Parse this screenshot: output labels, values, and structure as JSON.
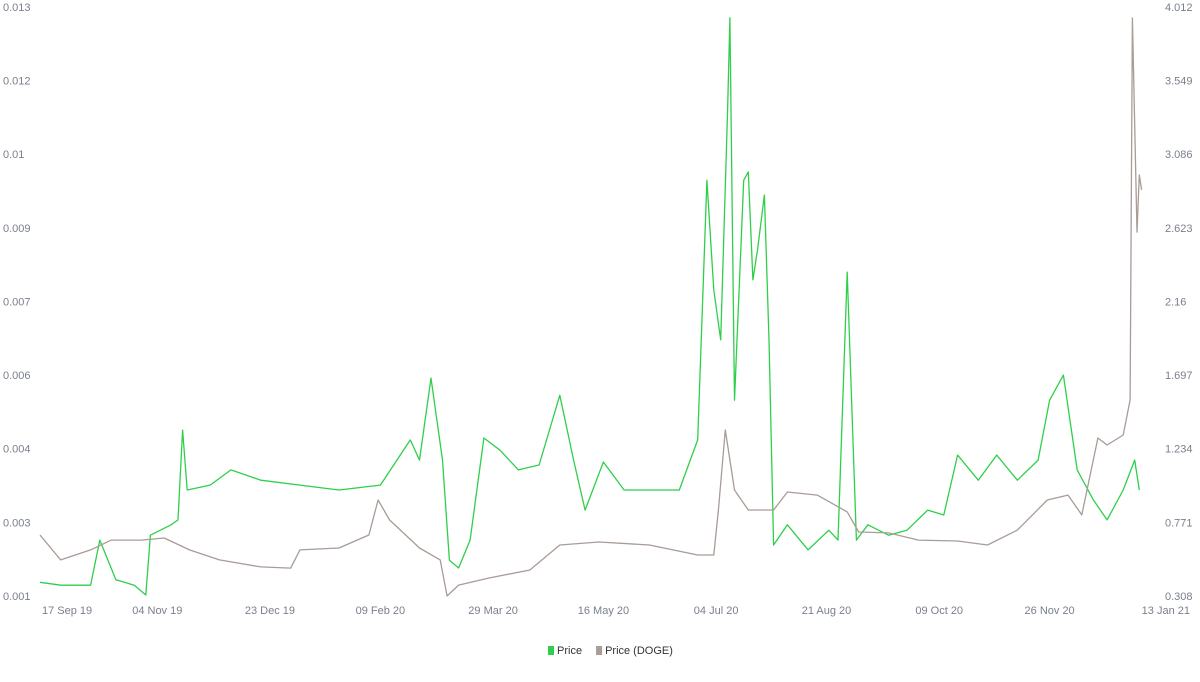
{
  "chart_data": {
    "type": "line",
    "xlim": [
      "2019-09-14",
      "2021-01-13"
    ],
    "xticks": [
      {
        "value": "2019-09-17",
        "label": "17 Sep 19"
      },
      {
        "value": "2019-11-04",
        "label": "04 Nov 19"
      },
      {
        "value": "2019-12-23",
        "label": "23 Dec 19"
      },
      {
        "value": "2020-02-09",
        "label": "09 Feb 20"
      },
      {
        "value": "2020-03-29",
        "label": "29 Mar 20"
      },
      {
        "value": "2020-05-16",
        "label": "16 May 20"
      },
      {
        "value": "2020-07-04",
        "label": "04 Jul 20"
      },
      {
        "value": "2020-08-21",
        "label": "21 Aug 20"
      },
      {
        "value": "2020-10-09",
        "label": "09 Oct 20"
      },
      {
        "value": "2020-11-26",
        "label": "26 Nov 20"
      },
      {
        "value": "2021-01-13",
        "label": "13 Jan 21"
      }
    ],
    "ylim": [
      0.001,
      0.013
    ],
    "yticks": [
      0.001,
      {
        "value": 0.0025,
        "label": "0.003"
      },
      0.004,
      {
        "value": 0.0055,
        "label": "0.006"
      },
      0.007,
      {
        "value": 0.0085,
        "label": "0.009"
      },
      0.01,
      {
        "value": 0.0115,
        "label": "0.012"
      },
      0.013
    ],
    "y2lim": [
      0.308,
      4.012
    ],
    "y2ticks": [
      0.308,
      0.771,
      1.234,
      1.697,
      2.16,
      2.623,
      3.086,
      3.549,
      4.012
    ],
    "grid": false,
    "legend": "bottom",
    "series": [
      {
        "name": "Price",
        "color": "#2fcf4a",
        "x": [
          "2019-09-14",
          "2019-09-23",
          "2019-10-06",
          "2019-10-10",
          "2019-10-17",
          "2019-10-25",
          "2019-10-30",
          "2019-11-01",
          "2019-11-10",
          "2019-11-13",
          "2019-11-15",
          "2019-11-17",
          "2019-11-27",
          "2019-12-06",
          "2019-12-19",
          "2020-01-05",
          "2020-01-22",
          "2020-02-09",
          "2020-02-22",
          "2020-02-26",
          "2020-03-02",
          "2020-03-07",
          "2020-03-10",
          "2020-03-14",
          "2020-03-19",
          "2020-03-25",
          "2020-04-01",
          "2020-04-09",
          "2020-04-18",
          "2020-04-27",
          "2020-05-03",
          "2020-05-08",
          "2020-05-16",
          "2020-05-25",
          "2020-06-05",
          "2020-06-18",
          "2020-06-26",
          "2020-06-30",
          "2020-07-03",
          "2020-07-06",
          "2020-07-09",
          "2020-07-10",
          "2020-07-12",
          "2020-07-16",
          "2020-07-18",
          "2020-07-20",
          "2020-07-22",
          "2020-07-25",
          "2020-07-27",
          "2020-07-29",
          "2020-08-04",
          "2020-08-13",
          "2020-08-22",
          "2020-08-26",
          "2020-08-30",
          "2020-09-03",
          "2020-09-08",
          "2020-09-17",
          "2020-09-25",
          "2020-10-04",
          "2020-10-11",
          "2020-10-17",
          "2020-10-26",
          "2020-11-03",
          "2020-11-12",
          "2020-11-21",
          "2020-11-26",
          "2020-12-02",
          "2020-12-08",
          "2020-12-15",
          "2020-12-21",
          "2020-12-28",
          "2021-01-02",
          "2021-01-04"
        ],
        "values": [
          0.0013,
          0.00124,
          0.00124,
          0.00216,
          0.00135,
          0.00124,
          0.00104,
          0.00226,
          0.00247,
          0.00257,
          0.0044,
          0.00318,
          0.00328,
          0.00359,
          0.00338,
          0.00328,
          0.00318,
          0.00328,
          0.0042,
          0.00379,
          0.00546,
          0.00379,
          0.00175,
          0.00159,
          0.00216,
          0.00424,
          0.00399,
          0.00359,
          0.00369,
          0.00511,
          0.00379,
          0.00277,
          0.00375,
          0.00318,
          0.00318,
          0.00318,
          0.0042,
          0.00949,
          0.00725,
          0.00624,
          0.01092,
          0.0128,
          0.00501,
          0.00949,
          0.00966,
          0.00746,
          0.00807,
          0.00919,
          0.00624,
          0.00206,
          0.00247,
          0.00196,
          0.00236,
          0.00216,
          0.00762,
          0.00216,
          0.00247,
          0.00226,
          0.00236,
          0.00277,
          0.00267,
          0.00389,
          0.00338,
          0.00389,
          0.00338,
          0.00379,
          0.00501,
          0.00552,
          0.00359,
          0.00298,
          0.00257,
          0.00318,
          0.00379,
          0.00318
        ]
      },
      {
        "name": "Price (DOGE)",
        "color": "#a89c96",
        "axis": "y2",
        "x": [
          "2019-09-14",
          "2019-09-23",
          "2019-10-06",
          "2019-10-15",
          "2019-10-28",
          "2019-11-07",
          "2019-11-18",
          "2019-12-01",
          "2019-12-19",
          "2020-01-01",
          "2020-01-05",
          "2020-01-22",
          "2020-02-04",
          "2020-02-08",
          "2020-02-13",
          "2020-02-26",
          "2020-03-06",
          "2020-03-09",
          "2020-03-14",
          "2020-03-27",
          "2020-04-14",
          "2020-04-27",
          "2020-05-14",
          "2020-06-05",
          "2020-06-26",
          "2020-07-03",
          "2020-07-05",
          "2020-07-08",
          "2020-07-12",
          "2020-07-18",
          "2020-07-29",
          "2020-08-04",
          "2020-08-17",
          "2020-08-30",
          "2020-09-04",
          "2020-09-17",
          "2020-09-30",
          "2020-10-17",
          "2020-10-30",
          "2020-11-12",
          "2020-11-25",
          "2020-12-04",
          "2020-12-10",
          "2020-12-17",
          "2020-12-21",
          "2020-12-28",
          "2020-12-31",
          "2021-01-01",
          "2021-01-03",
          "2021-01-04",
          "2021-01-05"
        ],
        "values": [
          0.698,
          0.541,
          0.604,
          0.666,
          0.666,
          0.679,
          0.604,
          0.541,
          0.497,
          0.49,
          0.604,
          0.616,
          0.698,
          0.918,
          0.792,
          0.616,
          0.541,
          0.314,
          0.383,
          0.427,
          0.478,
          0.635,
          0.654,
          0.635,
          0.572,
          0.572,
          0.855,
          1.358,
          0.981,
          0.855,
          0.855,
          0.968,
          0.949,
          0.843,
          0.717,
          0.711,
          0.666,
          0.66,
          0.635,
          0.729,
          0.918,
          0.949,
          0.824,
          1.308,
          1.264,
          1.327,
          1.547,
          3.949,
          2.603,
          2.962,
          2.868
        ]
      }
    ]
  }
}
